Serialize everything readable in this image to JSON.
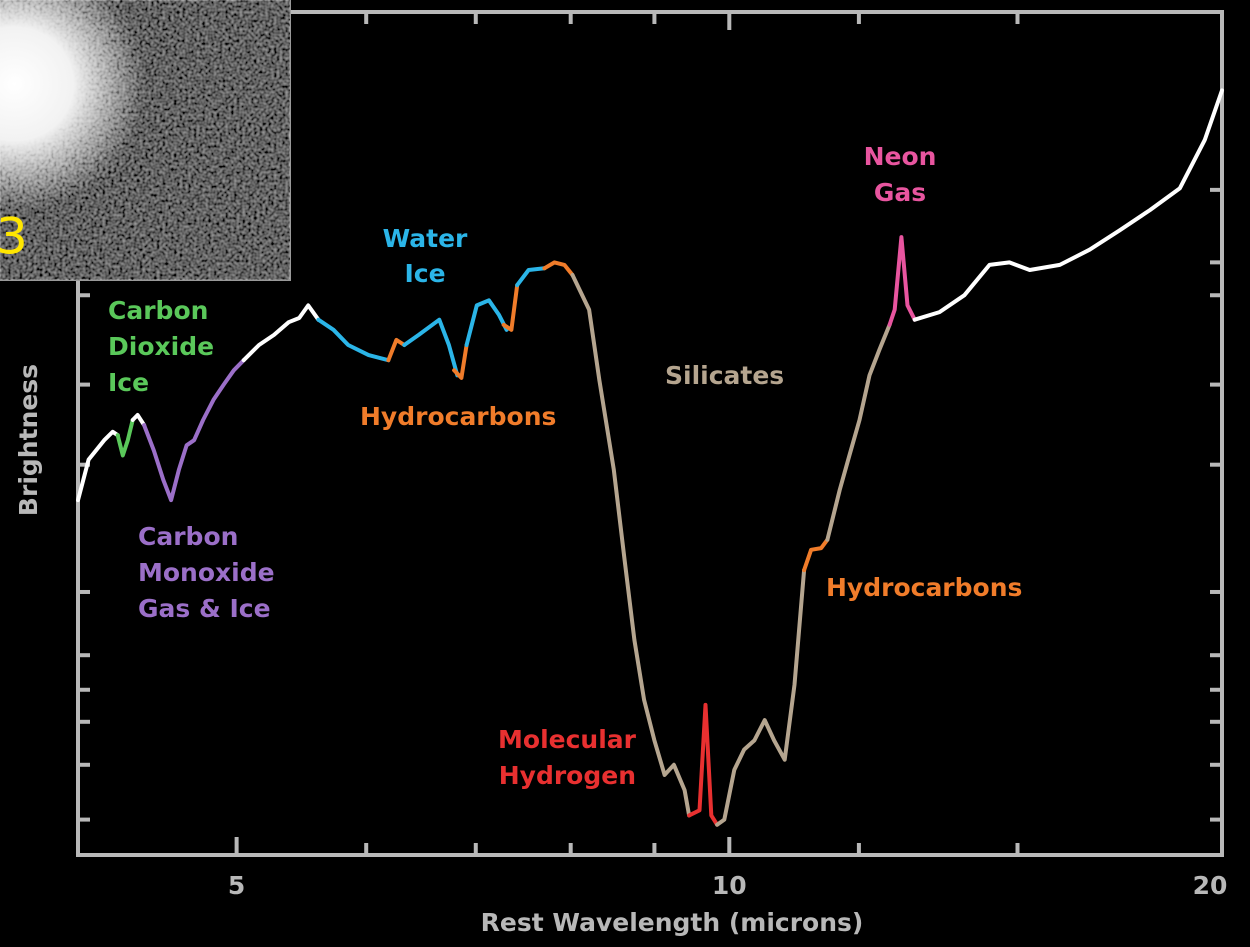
{
  "chart_data": {
    "type": "line",
    "x_label": "Rest Wavelength (microns)",
    "y_label": "Brightness",
    "xscale": "log",
    "xlim": [
      4,
      20
    ],
    "xticks": [
      5,
      10,
      20
    ],
    "xminorticks": [
      6,
      7,
      8,
      9,
      12,
      15
    ],
    "ylim": [
      0,
      100
    ],
    "yminorticks": [
      78.9,
      70.3,
      66.4,
      55.8,
      46.3,
      31.2,
      23.7,
      19.6,
      15.8,
      10.7,
      4.2
    ],
    "inset_label": "3",
    "series": [
      {
        "color": "#ffffff",
        "x": [
          4.0,
          4.06,
          4.15,
          4.2,
          4.23
        ],
        "values": [
          42.1,
          46.9,
          49.2,
          50.2,
          49.8
        ]
      },
      {
        "color": "#5ac85a",
        "x": [
          4.23,
          4.26,
          4.29,
          4.32
        ],
        "values": [
          49.8,
          47.4,
          49.2,
          51.6
        ]
      },
      {
        "color": "#ffffff",
        "x": [
          4.32,
          4.35,
          4.39
        ],
        "values": [
          51.6,
          52.2,
          51.0
        ]
      },
      {
        "color": "#9b6fc8",
        "x": [
          4.39,
          4.45,
          4.51,
          4.56,
          4.61,
          4.66,
          4.71,
          4.77,
          4.84,
          4.91,
          4.98,
          5.05
        ],
        "values": [
          51.0,
          48.0,
          44.5,
          42.1,
          45.7,
          48.6,
          49.2,
          51.6,
          54.0,
          55.8,
          57.5,
          58.7
        ]
      },
      {
        "color": "#ffffff",
        "x": [
          5.05,
          5.16,
          5.27,
          5.38,
          5.46,
          5.53,
          5.61
        ],
        "values": [
          58.7,
          60.5,
          61.7,
          63.2,
          63.7,
          65.2,
          63.5
        ]
      },
      {
        "color": "#2bb5e8",
        "x": [
          5.61,
          5.73,
          5.85,
          6.02,
          6.19
        ],
        "values": [
          63.5,
          62.3,
          60.5,
          59.3,
          58.7
        ]
      },
      {
        "color": "#f07c2a",
        "x": [
          6.19,
          6.26,
          6.33
        ],
        "values": [
          58.7,
          61.1,
          60.5
        ]
      },
      {
        "color": "#2bb5e8",
        "x": [
          6.33,
          6.46,
          6.65,
          6.74,
          6.82
        ],
        "values": [
          60.5,
          61.7,
          63.5,
          60.5,
          56.9
        ]
      },
      {
        "color": "#f07c2a",
        "x": [
          6.79,
          6.86,
          6.91
        ],
        "values": [
          57.5,
          56.6,
          60.5
        ]
      },
      {
        "color": "#2bb5e8",
        "x": [
          6.91,
          7.01,
          7.13,
          7.23,
          7.31
        ],
        "values": [
          60.5,
          65.2,
          65.8,
          64.1,
          62.3
        ]
      },
      {
        "color": "#f07c2a",
        "x": [
          7.28,
          7.36,
          7.42
        ],
        "values": [
          62.9,
          62.3,
          67.6
        ]
      },
      {
        "color": "#2bb5e8",
        "x": [
          7.42,
          7.54,
          7.71
        ],
        "values": [
          67.6,
          69.4,
          69.6
        ]
      },
      {
        "color": "#f07c2a",
        "x": [
          7.71,
          7.82,
          7.93,
          8.02
        ],
        "values": [
          69.6,
          70.3,
          70.0,
          68.8
        ]
      },
      {
        "color": "#b5a58f",
        "x": [
          8.02,
          8.21,
          8.33,
          8.5,
          8.63,
          8.75,
          8.87,
          9.0,
          9.13,
          9.25,
          9.39,
          9.45
        ],
        "values": [
          68.8,
          64.7,
          56.3,
          45.7,
          35.0,
          25.5,
          18.4,
          13.6,
          9.5,
          10.7,
          7.7,
          4.7
        ]
      },
      {
        "color": "#e83030",
        "x": [
          9.45,
          9.59,
          9.67,
          9.75,
          9.83
        ],
        "values": [
          4.7,
          5.3,
          17.8,
          4.7,
          3.6
        ]
      },
      {
        "color": "#b5a58f",
        "x": [
          9.83,
          9.93,
          10.07,
          10.21,
          10.36,
          10.51,
          10.65,
          10.81,
          10.96,
          11.11
        ],
        "values": [
          3.6,
          4.2,
          10.1,
          12.5,
          13.6,
          16.0,
          13.6,
          11.3,
          20.2,
          33.8
        ]
      },
      {
        "color": "#f07c2a",
        "x": [
          11.11,
          11.22,
          11.38,
          11.48
        ],
        "values": [
          33.8,
          36.2,
          36.4,
          37.4
        ]
      },
      {
        "color": "#b5a58f",
        "x": [
          11.48,
          11.68,
          11.84,
          12.01,
          12.18,
          12.35,
          12.53
        ],
        "values": [
          37.4,
          43.3,
          47.4,
          51.6,
          56.9,
          59.9,
          62.9
        ]
      },
      {
        "color": "#e8559f",
        "x": [
          12.53,
          12.62,
          12.74,
          12.85,
          12.98
        ],
        "values": [
          62.9,
          64.7,
          73.3,
          65.2,
          63.5
        ]
      },
      {
        "color": "#ffffff",
        "x": [
          12.98,
          13.44,
          13.92,
          14.42,
          14.83,
          15.26,
          15.92,
          16.6,
          17.32,
          18.07,
          18.85,
          19.52,
          20
        ],
        "values": [
          63.5,
          64.4,
          66.4,
          70.0,
          70.3,
          69.4,
          70.0,
          71.8,
          74.1,
          76.5,
          79.1,
          84.8,
          90.7
        ]
      }
    ],
    "annotations": [
      {
        "lines": [
          "Carbon",
          "Dioxide",
          "Ice"
        ],
        "color": "#5ac85a"
      },
      {
        "lines": [
          "Carbon",
          "Monoxide",
          "Gas & Ice"
        ],
        "color": "#9b6fc8"
      },
      {
        "lines": [
          "Water",
          "Ice"
        ],
        "color": "#2bb5e8"
      },
      {
        "lines": [
          "Hydrocarbons"
        ],
        "color": "#f07c2a"
      },
      {
        "lines": [
          "Silicates"
        ],
        "color": "#b5a58f"
      },
      {
        "lines": [
          "Molecular",
          "Hydrogen"
        ],
        "color": "#e83030"
      },
      {
        "lines": [
          "Hydrocarbons"
        ],
        "color": "#f07c2a"
      },
      {
        "lines": [
          "Neon",
          "Gas"
        ],
        "color": "#e8559f"
      }
    ]
  }
}
